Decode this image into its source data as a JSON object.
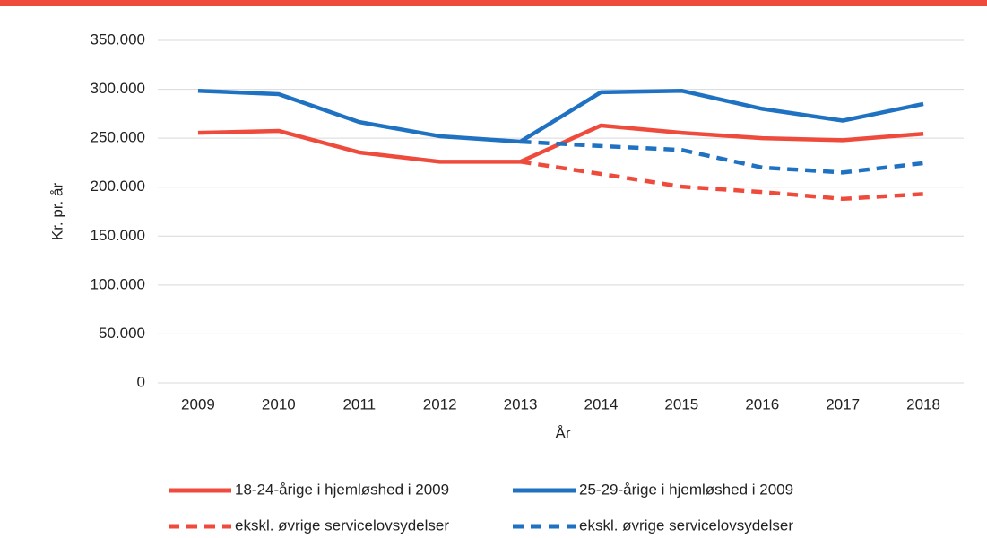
{
  "chart_data": {
    "type": "line",
    "x_label": "År",
    "y_label": "Kr. pr. år",
    "categories": [
      "2009",
      "2010",
      "2011",
      "2012",
      "2013",
      "2014",
      "2015",
      "2016",
      "2017",
      "2018"
    ],
    "series": [
      {
        "name": "18-24-årige i hjemløshed i 2009",
        "color": "#ef4b3c",
        "dashed": false,
        "values": [
          255500,
          257500,
          235500,
          226000,
          226000,
          263000,
          255500,
          250000,
          248000,
          254500
        ]
      },
      {
        "name": "25-29-årige i hjemløshed i 2009",
        "color": "#1f72c2",
        "dashed": false,
        "values": [
          298500,
          295000,
          266500,
          252000,
          246500,
          297000,
          298500,
          280000,
          268000,
          285000
        ]
      },
      {
        "name": "ekskl. øvrige servicelovsydelser",
        "color": "#ef4b3c",
        "dashed": true,
        "values": [
          null,
          null,
          null,
          null,
          226000,
          213500,
          200500,
          195000,
          188000,
          193000
        ]
      },
      {
        "name": "ekskl. øvrige servicelovsydelser",
        "color": "#1f72c2",
        "dashed": true,
        "values": [
          null,
          null,
          null,
          null,
          246500,
          242000,
          238000,
          220000,
          215000,
          224500
        ]
      }
    ],
    "ylim": [
      0,
      350000
    ],
    "yticks": [
      0,
      {
        "value": 50000,
        "label": "50.000"
      },
      {
        "value": 100000,
        "label": "100.000"
      },
      {
        "value": 150000,
        "label": "150.000"
      },
      {
        "value": 200000,
        "label": "200.000"
      },
      {
        "value": 250000,
        "label": "250.000"
      },
      {
        "value": 300000,
        "label": "300.000"
      },
      {
        "value": 350000,
        "label": "350.000"
      }
    ],
    "grid": true,
    "legend": "bottom"
  }
}
